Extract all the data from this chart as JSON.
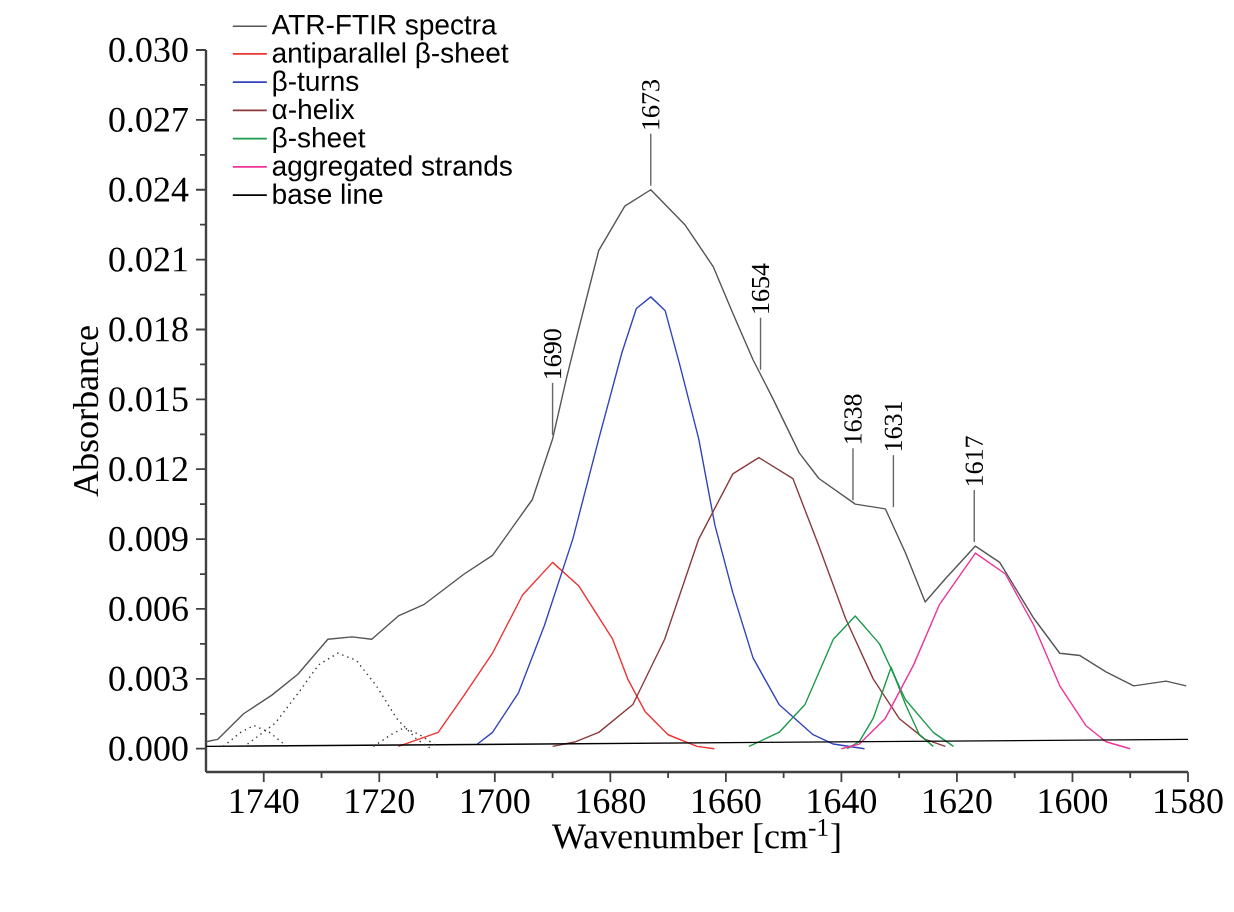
{
  "chart_data": {
    "type": "line",
    "xlabel": "Wavenumber [cm$^{-1}$]",
    "ylabel": "Absorbance",
    "legend": "top left",
    "xlim": [
      1750,
      1580
    ],
    "xticks": [
      1740,
      1720,
      1700,
      1680,
      1660,
      1640,
      1620,
      1600,
      1580
    ],
    "ylim": [
      -0.001,
      0.03
    ],
    "yticks": [
      {
        "value": 0,
        "label": "0.000"
      },
      {
        "value": 0.003,
        "label": "0.003"
      },
      {
        "value": 0.006,
        "label": "0.006"
      },
      {
        "value": 0.009,
        "label": "0.009"
      },
      {
        "value": 0.012,
        "label": "0.012"
      },
      {
        "value": 0.015,
        "label": "0.015"
      },
      {
        "value": 0.018,
        "label": "0.018"
      },
      {
        "value": 0.021,
        "label": "0.021"
      },
      {
        "value": 0.024,
        "label": "0.024"
      },
      {
        "value": 0.027,
        "label": "0.027"
      },
      {
        "value": 0.03,
        "label": "0.030"
      }
    ],
    "series": [
      {
        "name": "ATR-FTIR spectra",
        "color": "#555555",
        "x": [
          1750,
          1748,
          1743.5,
          1738.6,
          1734.1,
          1728.9,
          1724.7,
          1721.3,
          1716.7,
          1712.2,
          1705.3,
          1700.4,
          1693.5,
          1690,
          1687.6,
          1685.5,
          1682,
          1677.5,
          1673,
          1667.1,
          1662.2,
          1658.8,
          1655.3,
          1651.8,
          1647.3,
          1643.9,
          1637.6,
          1632.4,
          1628.9,
          1625.5,
          1622,
          1616.8,
          1612.6,
          1606.7,
          1602.2,
          1598.7,
          1594.2,
          1589.4,
          1583.8,
          1580.3
        ],
        "values": [
          0.0003,
          0.0004,
          0.0015,
          0.0023,
          0.0032,
          0.0047,
          0.0048,
          0.0047,
          0.0057,
          0.0062,
          0.0075,
          0.0083,
          0.0107,
          0.0133,
          0.0159,
          0.018,
          0.0214,
          0.0233,
          0.024,
          0.0225,
          0.0207,
          0.0187,
          0.0167,
          0.015,
          0.0127,
          0.0116,
          0.0105,
          0.0103,
          0.0084,
          0.0063,
          0.0073,
          0.0087,
          0.008,
          0.0056,
          0.0041,
          0.004,
          0.0033,
          0.0027,
          0.0029,
          0.0027
        ]
      },
      {
        "name": "antiparallel β-sheet",
        "color": "#ee3333",
        "x": [
          1716.7,
          1709.8,
          1705.3,
          1700.4,
          1695.2,
          1690,
          1685.5,
          1679.6,
          1677,
          1674,
          1670,
          1665,
          1662
        ],
        "values": [
          0.0001,
          0.0007,
          0.0023,
          0.0041,
          0.0066,
          0.008,
          0.007,
          0.0047,
          0.003,
          0.0016,
          0.0006,
          0.0001,
          0
        ]
      },
      {
        "name": "β-turns",
        "color": "#3344bb",
        "x": [
          1703,
          1700.4,
          1695.9,
          1691.4,
          1686.5,
          1682,
          1678,
          1675.5,
          1673,
          1670.5,
          1668,
          1664.7,
          1661.9,
          1658.8,
          1655.3,
          1650.8,
          1644.9,
          1641.4,
          1636
        ],
        "values": [
          0.0002,
          0.0007,
          0.0024,
          0.0053,
          0.009,
          0.0133,
          0.017,
          0.0189,
          0.0194,
          0.0188,
          0.0165,
          0.0133,
          0.0096,
          0.0067,
          0.0039,
          0.0019,
          0.0006,
          0.0002,
          0
        ]
      },
      {
        "name": "α-helix",
        "color": "#8b3a3a",
        "x": [
          1690,
          1686,
          1682,
          1676.1,
          1670.6,
          1664.7,
          1658.8,
          1654.3,
          1648.4,
          1643.9,
          1639.3,
          1634.5,
          1630,
          1625.5,
          1622
        ],
        "values": [
          0.0001,
          0.0003,
          0.0007,
          0.0019,
          0.0047,
          0.009,
          0.0118,
          0.0125,
          0.0116,
          0.0087,
          0.0056,
          0.003,
          0.0013,
          0.0004,
          0.0001
        ]
      },
      {
        "name": "β-sheet",
        "color": "#1a9a4a",
        "x": [
          1656,
          1650.8,
          1646.3,
          1641.4,
          1637.6,
          1633.4,
          1628.9,
          1624.1,
          1620.6
        ],
        "values": [
          0.0001,
          0.0007,
          0.0019,
          0.0047,
          0.0057,
          0.0045,
          0.0021,
          0.0007,
          0.0001
        ]
      },
      {
        "color": "#1a9a4a",
        "x": [
          1639,
          1636.9,
          1634.5,
          1631.4,
          1628.9,
          1626.5,
          1624.1
        ],
        "values": [
          0,
          0.0003,
          0.0013,
          0.0035,
          0.0019,
          0.0006,
          0.0001
        ]
      },
      {
        "name": "aggregated strands",
        "color": "#ee3399",
        "x": [
          1640,
          1636.9,
          1632.4,
          1627.5,
          1623,
          1616.8,
          1611.6,
          1606.7,
          1602.2,
          1597.7,
          1594.2,
          1590
        ],
        "values": [
          0,
          0.0002,
          0.0013,
          0.0036,
          0.0062,
          0.0084,
          0.0075,
          0.0053,
          0.0027,
          0.001,
          0.0003,
          0
        ]
      },
      {
        "name": "base line",
        "color": "#000000",
        "x": [
          1750,
          1580
        ],
        "values": [
          0.0001,
          0.0004
        ]
      },
      {
        "color": "#333333",
        "line_style": "dotted",
        "x": [
          1742.8,
          1738,
          1734,
          1730.5,
          1727.2,
          1724,
          1720.5,
          1717,
          1713.5,
          1711
        ],
        "values": [
          0.0002,
          0.0011,
          0.0024,
          0.0036,
          0.0041,
          0.0038,
          0.0027,
          0.0013,
          0.0004,
          0
        ]
      },
      {
        "color": "#333333",
        "line_style": "dotted",
        "x": [
          1747,
          1744,
          1741.7,
          1739,
          1736
        ],
        "values": [
          0.0001,
          0.0007,
          0.001,
          0.0007,
          0.0001
        ]
      },
      {
        "color": "#333333",
        "line_style": "dotted",
        "x": [
          1721,
          1718,
          1715.7,
          1713,
          1710
        ],
        "values": [
          0.0001,
          0.0006,
          0.0009,
          0.0006,
          0.0001
        ]
      }
    ],
    "annotations": [
      {
        "text": "1690",
        "x": 1690,
        "y": 0.0133
      },
      {
        "text": "1673",
        "x": 1673,
        "y": 0.024
      },
      {
        "text": "1654",
        "x": 1654,
        "y": 0.0161
      },
      {
        "text": "1638",
        "x": 1638,
        "y": 0.0105
      },
      {
        "text": "1631",
        "x": 1631,
        "y": 0.0102
      },
      {
        "text": "1617",
        "x": 1617,
        "y": 0.0087
      }
    ]
  }
}
